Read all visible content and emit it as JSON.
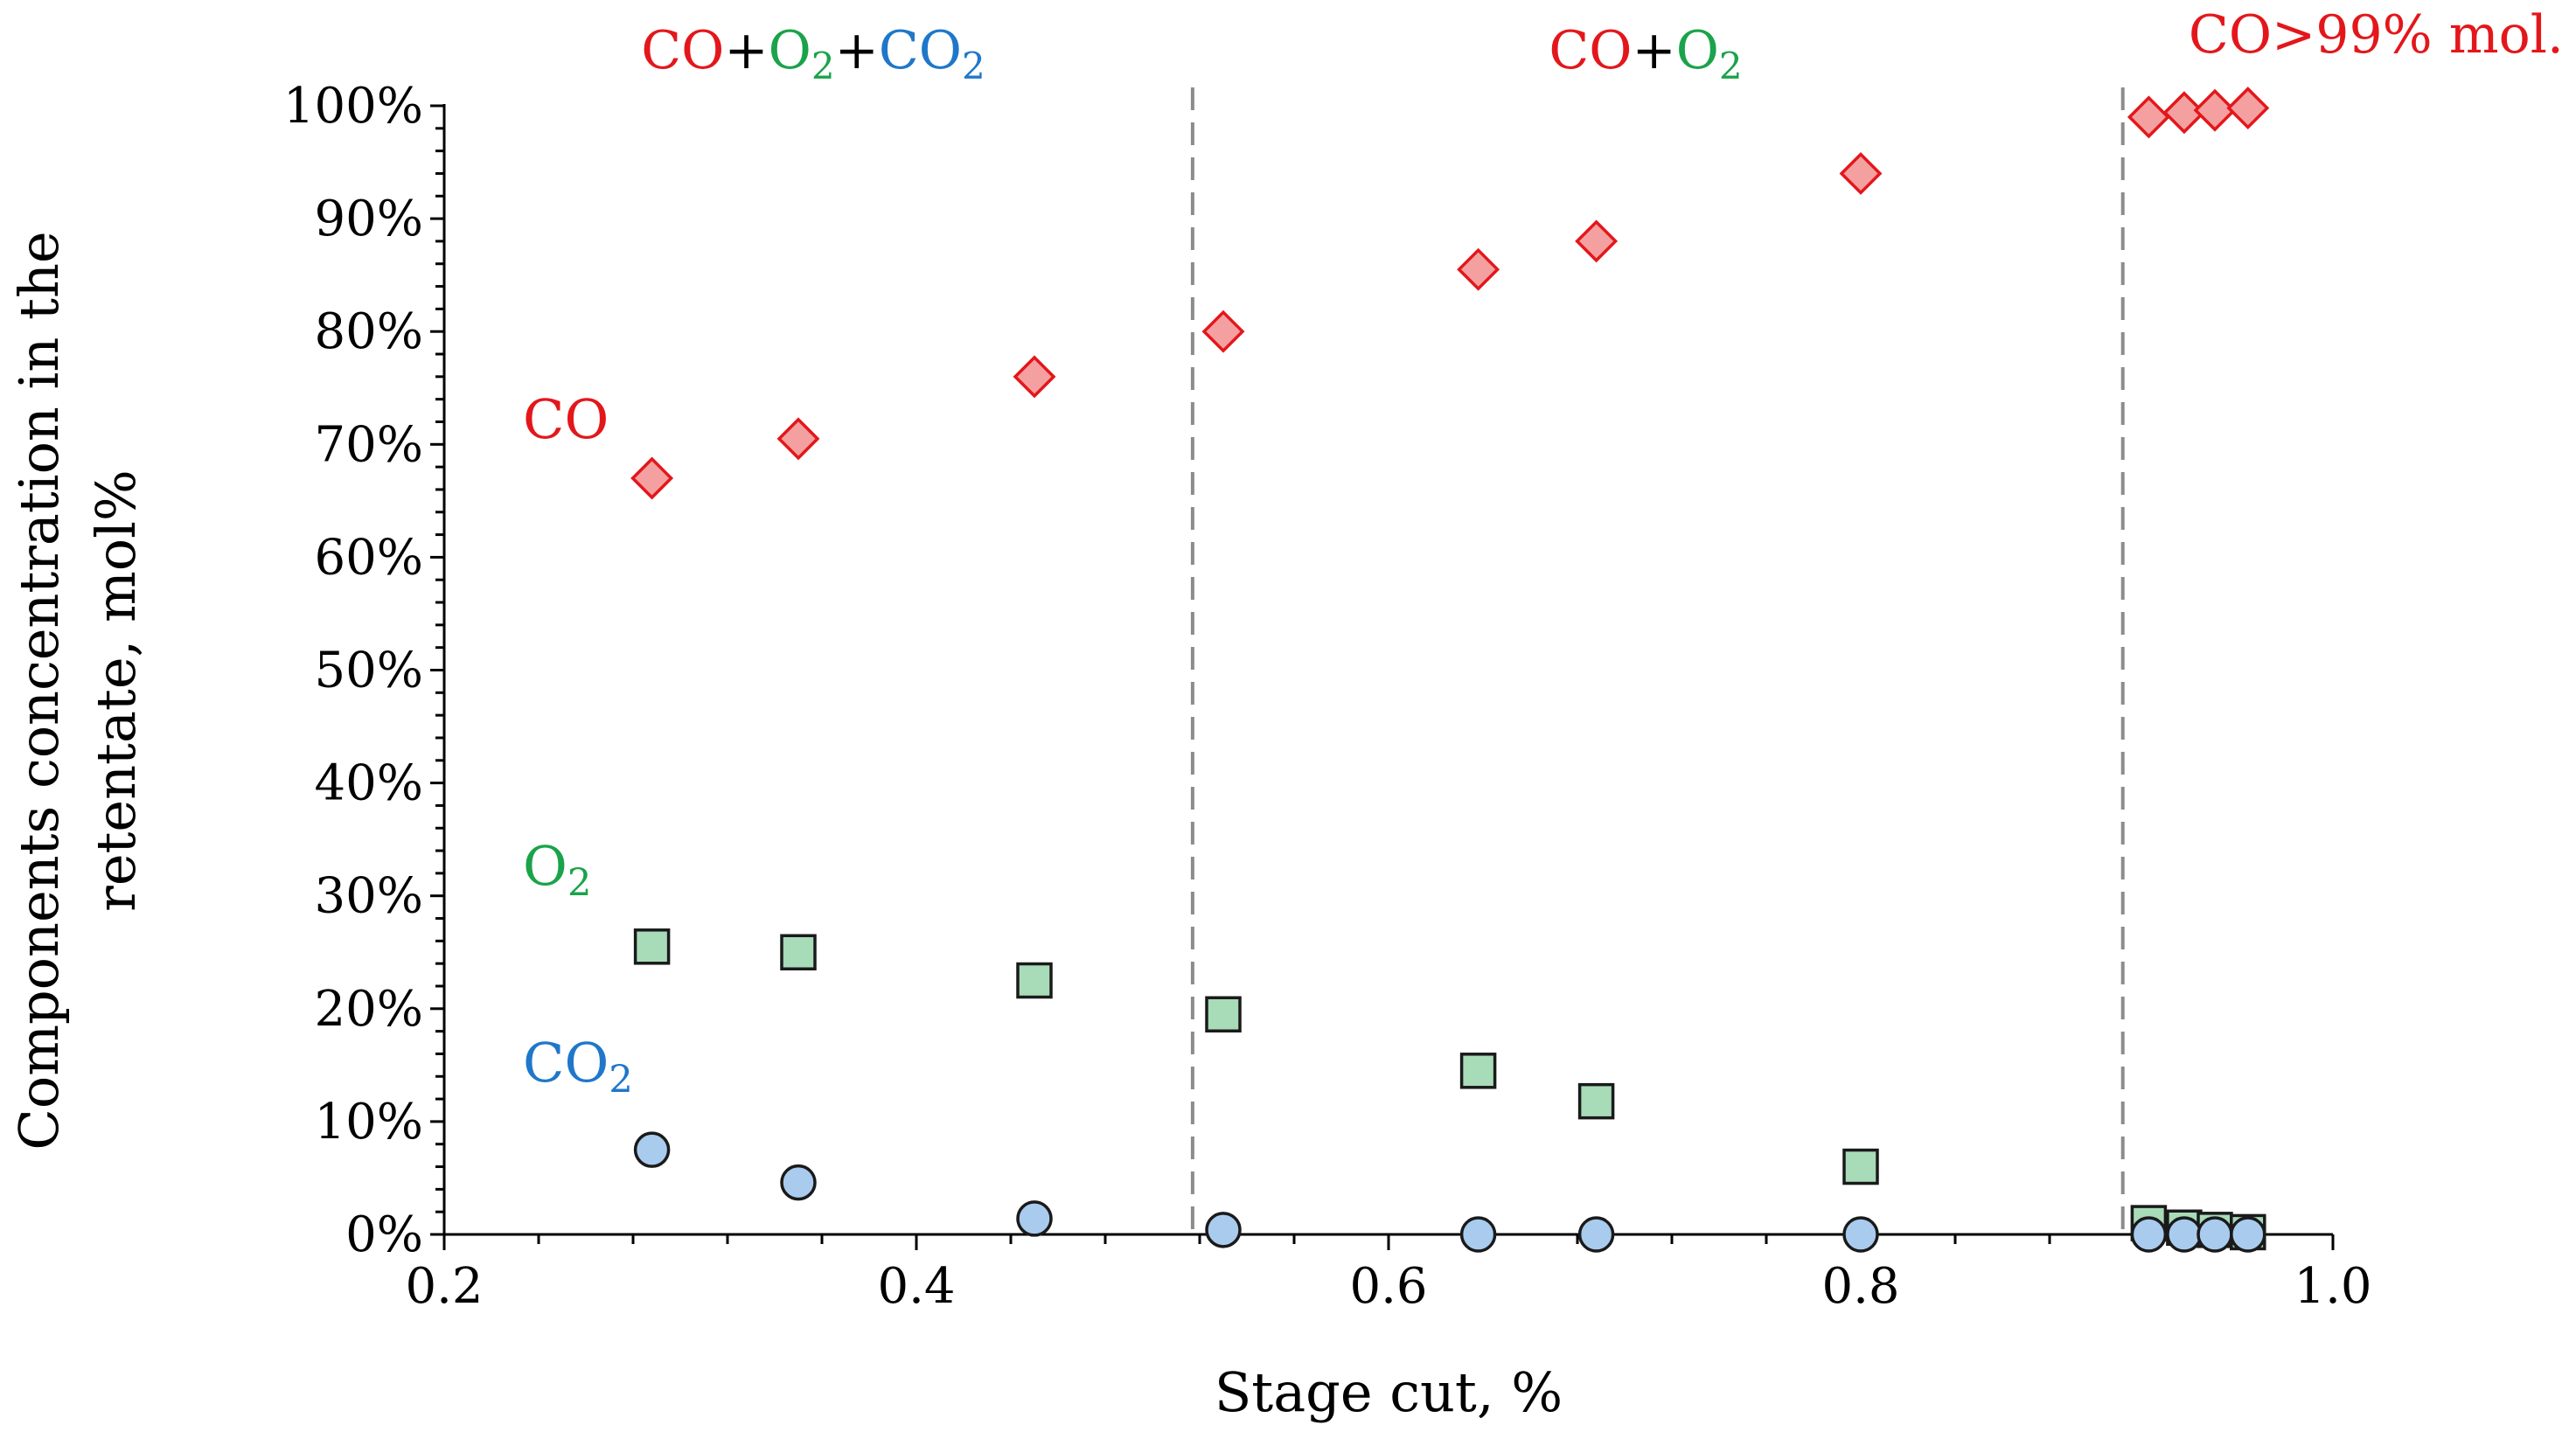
{
  "chart_data": {
    "type": "scatter",
    "xlabel": "Stage cut, %",
    "ylabel_lines": [
      "Components concentration in the",
      "retentate, mol%"
    ],
    "xlim": [
      0.2,
      1.0
    ],
    "ylim": [
      0,
      100
    ],
    "x_ticks": [
      0.2,
      0.4,
      0.6,
      0.8,
      1.0
    ],
    "x_tick_labels": [
      "0.2",
      "0.4",
      "0.6",
      "0.8",
      "1.0"
    ],
    "y_ticks": [
      0,
      10,
      20,
      30,
      40,
      50,
      60,
      70,
      80,
      90,
      100
    ],
    "y_tick_labels": [
      "0%",
      "10%",
      "20%",
      "30%",
      "40%",
      "50%",
      "60%",
      "70%",
      "80%",
      "90%",
      "100%"
    ],
    "grid": false,
    "series": [
      {
        "name": "CO",
        "marker": "diamond",
        "color": "#e3171b",
        "fill": "#f4a0a0",
        "x": [
          0.288,
          0.35,
          0.45,
          0.53,
          0.638,
          0.688,
          0.8,
          0.922,
          0.937,
          0.95,
          0.964
        ],
        "y": [
          67,
          70.5,
          76,
          80,
          85.5,
          88,
          94,
          99,
          99.4,
          99.6,
          99.8
        ]
      },
      {
        "name": "O2",
        "marker": "square",
        "color": "#1a1a1a",
        "fill": "#a8dbb8",
        "x": [
          0.288,
          0.35,
          0.45,
          0.53,
          0.638,
          0.688,
          0.8,
          0.922,
          0.937,
          0.95,
          0.964
        ],
        "y": [
          25.5,
          25,
          22.5,
          19.5,
          14.5,
          11.8,
          6,
          1,
          0.6,
          0.4,
          0.2
        ]
      },
      {
        "name": "CO2",
        "marker": "circle",
        "color": "#1a1a1a",
        "fill": "#a9cbee",
        "x": [
          0.288,
          0.35,
          0.45,
          0.53,
          0.638,
          0.688,
          0.8,
          0.922,
          0.937,
          0.95,
          0.964
        ],
        "y": [
          7.5,
          4.6,
          1.4,
          0.4,
          0,
          0,
          0,
          0,
          0,
          0,
          0
        ]
      }
    ],
    "vertical_lines": [
      0.517,
      0.911
    ],
    "region_labels": [
      {
        "parts": [
          {
            "text": "CO",
            "color": "#e3171b"
          },
          {
            "text": "+",
            "color": "#000000"
          },
          {
            "text": "O",
            "color": "#1aa34a"
          },
          {
            "text": "2",
            "color": "#1aa34a",
            "sub": true
          },
          {
            "text": "+",
            "color": "#000000"
          },
          {
            "text": "CO",
            "color": "#1f77c9"
          },
          {
            "text": "2",
            "color": "#1f77c9",
            "sub": true
          }
        ]
      },
      {
        "parts": [
          {
            "text": "CO",
            "color": "#e3171b"
          },
          {
            "text": "+",
            "color": "#000000"
          },
          {
            "text": "O",
            "color": "#1aa34a"
          },
          {
            "text": "2",
            "color": "#1aa34a",
            "sub": true
          }
        ]
      },
      {
        "parts": [
          {
            "text": "CO>99% mol.",
            "color": "#e3171b"
          }
        ]
      }
    ],
    "series_labels": [
      {
        "parts": [
          {
            "text": "CO",
            "color": "#e3171b"
          }
        ]
      },
      {
        "parts": [
          {
            "text": "O",
            "color": "#1aa34a"
          },
          {
            "text": "2",
            "color": "#1aa34a",
            "sub": true
          }
        ]
      },
      {
        "parts": [
          {
            "text": "CO",
            "color": "#1f77c9"
          },
          {
            "text": "2",
            "color": "#1f77c9",
            "sub": true
          }
        ]
      }
    ]
  }
}
